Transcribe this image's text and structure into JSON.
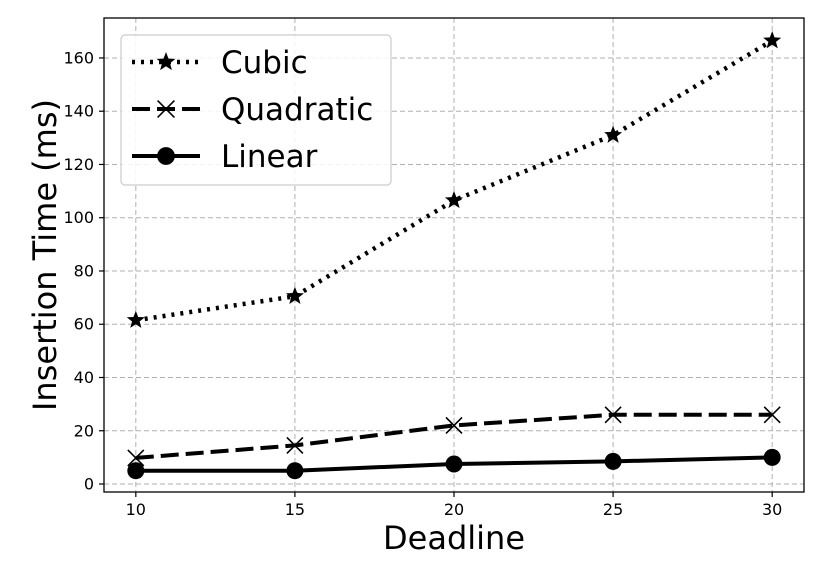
{
  "chart_data": {
    "type": "line",
    "title": "",
    "xlabel": "Deadline",
    "ylabel": "Insertion Time (ms)",
    "x": [
      10,
      15,
      20,
      25,
      30
    ],
    "x_ticks": [
      "10",
      "15",
      "20",
      "25",
      "30"
    ],
    "y_ticks": [
      "0",
      "20",
      "40",
      "60",
      "80",
      "100",
      "120",
      "140",
      "160"
    ],
    "xlim": [
      9,
      31
    ],
    "ylim": [
      -3,
      175
    ],
    "grid": true,
    "legend_position": "top-left",
    "series": [
      {
        "name": "Cubic",
        "values": [
          61.5,
          70.5,
          106.5,
          131,
          166.5
        ],
        "line_style": "dotted",
        "marker": "star",
        "color": "#000000"
      },
      {
        "name": "Quadratic",
        "values": [
          9.8,
          14.5,
          22,
          26,
          26
        ],
        "line_style": "dashed",
        "marker": "x",
        "color": "#000000"
      },
      {
        "name": "Linear",
        "values": [
          5,
          5,
          7.5,
          8.5,
          10
        ],
        "line_style": "solid",
        "marker": "circle",
        "color": "#000000"
      }
    ]
  }
}
